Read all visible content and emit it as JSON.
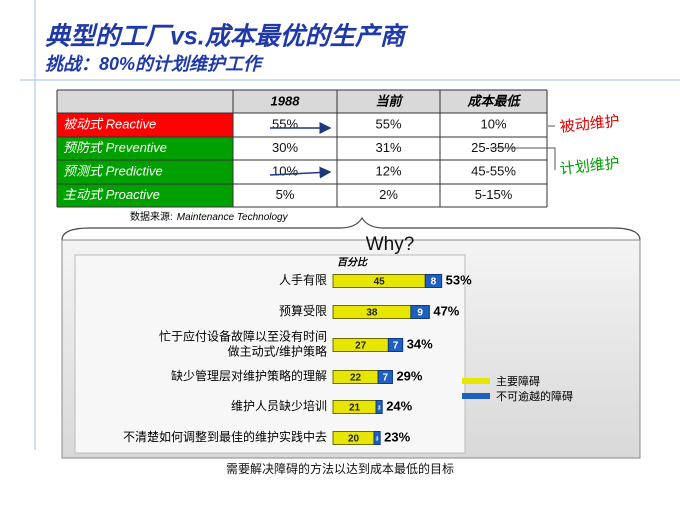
{
  "header": {
    "title": "典型的工厂vs.成本最优的生产商",
    "subtitle": "挑战：80%的计划维护工作"
  },
  "table": {
    "header": [
      "1988",
      "当前",
      "成本最低"
    ],
    "rows": [
      [
        "被动式 Reactive",
        "55%",
        "55%",
        "10%"
      ],
      [
        "预防式 Preventive",
        "30%",
        "31%",
        "25-35%"
      ],
      [
        "预测式 Predictive",
        "10%",
        "12%",
        "45-55%"
      ],
      [
        "主动式 Proactive",
        "5%",
        "2%",
        "5-15%"
      ]
    ],
    "row_colors": [
      "#ff0000",
      "#00a000",
      "#00a000",
      "#00a000"
    ],
    "source_label": "数据来源:",
    "source_name": "Maintenance Technology"
  },
  "side_labels": [
    {
      "text": "被动维护",
      "color": "#e00000"
    },
    {
      "text": "计划维护",
      "color": "#00a000"
    }
  ],
  "why": "Why?",
  "chart_data": {
    "type": "bar",
    "orientation": "horizontal",
    "stacked": true,
    "value_title": "百分比",
    "categories": [
      "人手有限",
      "预算受限",
      "忙于应付设备故障以至没有时间\n做主动式/维护策略",
      "缺少管理层对维护策略的理解",
      "维护人员缺少培训",
      "不清楚如何调整到最佳的维护实践中去"
    ],
    "series": [
      {
        "name": "主要障碍",
        "color": "#e6e600",
        "values": [
          45,
          38,
          27,
          22,
          21,
          20
        ]
      },
      {
        "name": "不可逾越的障碍",
        "color": "#1f5fbf",
        "values": [
          8,
          9,
          7,
          7,
          3,
          3
        ]
      }
    ],
    "totals": [
      53,
      47,
      34,
      29,
      24,
      23
    ],
    "total_labels": [
      "53%",
      "47%",
      "34%",
      "29%",
      "24%",
      "23%"
    ]
  },
  "caption": "需要解决障碍的方法以达到成本最低的目标"
}
